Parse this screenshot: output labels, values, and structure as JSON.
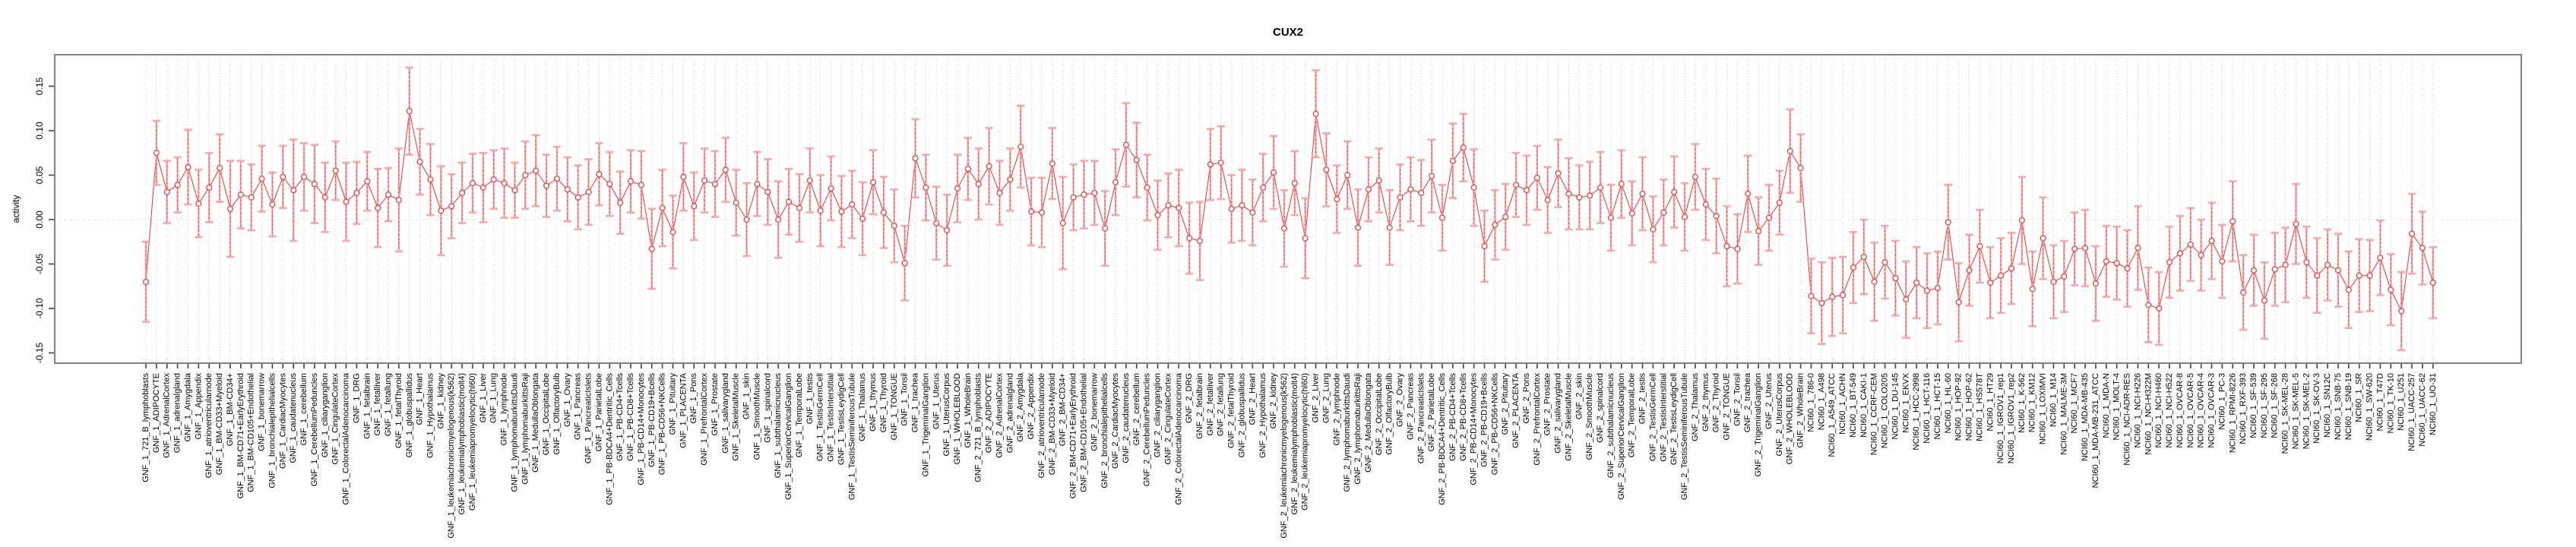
{
  "title": "CUX2",
  "chart_data": {
    "type": "scatter",
    "title": "CUX2",
    "xlabel": "",
    "ylabel": "activity",
    "ylim": [
      -0.16,
      0.19
    ],
    "yticks": [
      -0.15,
      -0.1,
      -0.05,
      0.0,
      0.05,
      0.1,
      0.15
    ],
    "grid": true,
    "legend": "none",
    "marker": "open-circle-with-error-bars",
    "colors": {
      "point": "#ee4040",
      "line": "#ee4040",
      "errorbar": "#f8a6a6",
      "gridline": "#d8d8d8",
      "box": "#808080",
      "text": "#000000",
      "background": "#ffffff"
    },
    "categories": [
      "GNF_1_721_B_lymphoblasts",
      "GNF_1_ADIPOCYTE",
      "GNF_1_AdrenalCortex",
      "GNF_1_adrenalgland",
      "GNF_1_Amygdala",
      "GNF_1_Appendix",
      "GNF_1_atrioventricularnode",
      "GNF_1_BM-CD33+Myeloid",
      "GNF_1_BM-CD34+",
      "GNF_1_BM-CD71+EarlyErythroid",
      "GNF_1_BM-CD105+Endothelial",
      "GNF_1_bonemarrow",
      "GNF_1_bronchialepithelialcells",
      "GNF_1_CardiacMyocytes",
      "GNF_1_caudatenucleus",
      "GNF_1_cerebellum",
      "GNF_1_CerebellumPeduncles",
      "GNF_1_ciliaryganglion",
      "GNF_1_CingulateCortex",
      "GNF_1_ColorectalAdenocarcinoma",
      "GNF_1_DRG",
      "GNF_1_fetalbrain",
      "GNF_1_fetalliver",
      "GNF_1_fetallung",
      "GNF_1_fetalThyroid",
      "GNF_1_globuspallidus",
      "GNF_1_Heart",
      "GNF_1_Hypothalamus",
      "GNF_1_kidney",
      "GNF_1_leukemiachronicmyelogenous(k562)",
      "GNF_1_leukemialymphoblastic(molt4)",
      "GNF_1_leukemiapromyelocytic(hl60)",
      "GNF_1_Liver",
      "GNF_1_Lung",
      "GNF_1_lymphnode",
      "GNF_1_lymphomaburkittsDaudi",
      "GNF_1_lymphomaburkittsRaji",
      "GNF_1_MedullaOblongata",
      "GNF_1_OccipitalLobe",
      "GNF_1_OlfactoryBulb",
      "GNF_1_Ovary",
      "GNF_1_Pancreas",
      "GNF_1_PancreaticIslets",
      "GNF_1_ParietalLobe",
      "GNF_1_PB-BDCA4+Dentritic_Cells",
      "GNF_1_PB-CD4+Tcells",
      "GNF_1_PB-CD8+Tcells",
      "GNF_1_PB-CD14+Monocytes",
      "GNF_1_PB-CD19+Bcells",
      "GNF_1_PB-CD56+NKCells",
      "GNF_1_Pituitary",
      "GNF_1_PLACENTA",
      "GNF_1_Pons",
      "GNF_1_PrefrontalCortex",
      "GNF_1_Prostate",
      "GNF_1_salivarygland",
      "GNF_1_SkeletalMuscle",
      "GNF_1_skin",
      "GNF_1_SmoothMuscle",
      "GNF_1_spinalcord",
      "GNF_1_subthalamicnucleus",
      "GNF_1_SuperiorCervicalGanglion",
      "GNF_1_TemporalLobe",
      "GNF_1_testis",
      "GNF_1_TestisGermCell",
      "GNF_1_TestisInterstitial",
      "GNF_1_TestisLeydigCell",
      "GNF_1_TestisSeminiferousTubule",
      "GNF_1_Thalamus",
      "GNF_1_thymus",
      "GNF_1_Thyroid",
      "GNF_1_TONGUE",
      "GNF_1_Tonsil",
      "GNF_1_trachea",
      "GNF_1_TrigeminalGanglion",
      "GNF_1_Uterus",
      "GNF_1_UterusCorpus",
      "GNF_1_WHOLEBLOOD",
      "GNF_1_WholeBrain",
      "GNF_2_721_B_lymphoblasts",
      "GNF_2_ADIPOCYTE",
      "GNF_2_AdrenalCortex",
      "GNF_2_adrenalgland",
      "GNF_2_Amygdala",
      "GNF_2_Appendix",
      "GNF_2_atrioventricularnode",
      "GNF_2_BM-CD33+Myeloid",
      "GNF_2_BM-CD34+",
      "GNF_2_BM-CD71+EarlyErythroid",
      "GNF_2_BM-CD105+Endothelial",
      "GNF_2_bonemarrow",
      "GNF_2_bronchialepithelialcells",
      "GNF_2_CardiacMyocytes",
      "GNF_2_caudatenucleus",
      "GNF_2_cerebellum",
      "GNF_2_CerebellumPeduncles",
      "GNF_2_ciliaryganglion",
      "GNF_2_CingulateCortex",
      "GNF_2_ColorectalAdenocarcinoma",
      "GNF_2_DRG",
      "GNF_2_fetalbrain",
      "GNF_2_fetalliver",
      "GNF_2_fetallung",
      "GNF_2_fetalThyroid",
      "GNF_2_globuspallidus",
      "GNF_2_Heart",
      "GNF_2_Hypothalamus",
      "GNF_2_kidney",
      "GNF_2_leukemiachronicmyelogenous(k562)",
      "GNF_2_leukemialymphoblastic(molt4)",
      "GNF_2_leukemiapromyelocytic(hl60)",
      "GNF_2_Liver",
      "GNF_2_Lung",
      "GNF_2_lymphnode",
      "GNF_2_lymphomaburkittsDaudi",
      "GNF_2_lymphomaburkittsRaji",
      "GNF_2_MedullaOblongata",
      "GNF_2_OccipitalLobe",
      "GNF_2_OlfactoryBulb",
      "GNF_2_Ovary",
      "GNF_2_Pancreas",
      "GNF_2_PancreaticIslets",
      "GNF_2_ParietalLobe",
      "GNF_2_PB-BDCA4+Dentritic_Cells",
      "GNF_2_PB-CD4+Tcells",
      "GNF_2_PB-CD8+Tcells",
      "GNF_2_PB-CD14+Monocytes",
      "GNF_2_PB-CD19+Bcells",
      "GNF_2_PB-CD56+NKCells",
      "GNF_2_Pituitary",
      "GNF_2_PLACENTA",
      "GNF_2_Pons",
      "GNF_2_PrefrontalCortex",
      "GNF_2_Prostate",
      "GNF_2_salivarygland",
      "GNF_2_SkeletalMuscle",
      "GNF_2_skin",
      "GNF_2_SmoothMuscle",
      "GNF_2_spinalcord",
      "GNF_2_subthalamicnucleus",
      "GNF_2_SuperiorCervicalGanglion",
      "GNF_2_TemporalLobe",
      "GNF_2_testis",
      "GNF_2_TestisGermCell",
      "GNF_2_TestisInterstitial",
      "GNF_2_TestisLeydigCell",
      "GNF_2_TestisSeminiferousTubule",
      "GNF_2_Thalamus",
      "GNF_2_thymus",
      "GNF_2_Thyroid",
      "GNF_2_TONGUE",
      "GNF_2_Tonsil",
      "GNF_2_trachea",
      "GNF_2_TrigeminalGanglion",
      "GNF_2_Uterus",
      "GNF_2_UterusCorpus",
      "GNF_2_WHOLEBLOOD",
      "GNF_2_WholeBrain",
      "NCI60_1_786-0",
      "NCI60_1_A498",
      "NCI60_1_A549_ATCC",
      "NCI60_1_ACHN",
      "NCI60_1_BT-549",
      "NCI60_1_CAKI-1",
      "NCI60_1_CCRF-CEM",
      "NCI60_1_COLO205",
      "NCI60_1_DU-145",
      "NCI60_1_EKVX",
      "NCI60_1_HCC-2998",
      "NCI60_1_HCT-116",
      "NCI60_1_HCT-15",
      "NCI60_1_HL-60",
      "NCI60_1_HOP-92",
      "NCI60_1_HOP-62",
      "NCI60_1_HS578T",
      "NCI60_1_HT29",
      "NCI60_1_IGROV1_rep1",
      "NCI60_1_IGROV1_rep2",
      "NCI60_1_K-562",
      "NCI60_1_KM12",
      "NCI60_1_LOXIMVI",
      "NCI60_1_M14",
      "NCI60_1_MALME-3M",
      "NCI60_1_MCF7",
      "NCI60_1_MDA-MB-435",
      "NCI60_1_MDA-MB-231_ATCC",
      "NCI60_1_MDA-N",
      "NCI60_1_MOLT-4",
      "NCI60_1_NCI-ADR-RES",
      "NCI60_1_NCI-H226",
      "NCI60_1_NCI-H322M",
      "NCI60_1_NCI-H460",
      "NCI60_1_NCI-H522",
      "NCI60_1_OVCAR-8",
      "NCI60_1_OVCAR-5",
      "NCI60_1_OVCAR-4",
      "NCI60_1_OVCAR-3",
      "NCI60_1_PC-3",
      "NCI60_1_RPMI-8226",
      "NCI60_1_RXF-393",
      "NCI60_1_SF-539",
      "NCI60_1_SF-295",
      "NCI60_1_SF-268",
      "NCI60_1_SK-MEL-28",
      "NCI60_1_SK-MEL-5",
      "NCI60_1_SK-MEL-2",
      "NCI60_1_SK-OV-3",
      "NCI60_1_SN12C",
      "NCI60_1_SNB-75",
      "NCI60_1_SNB-19",
      "NCI60_1_SR",
      "NCI60_1_SW-620",
      "NCI60_1_T47D",
      "NCI60_1_TK-10",
      "NCI60_1_U251",
      "NCI60_1_UACC-257",
      "NCI60_1_UACC-62",
      "NCI60_1_UO-31"
    ],
    "series": [
      {
        "name": "activity",
        "values": [
          -0.07,
          0.075,
          0.031,
          0.039,
          0.059,
          0.018,
          0.036,
          0.058,
          0.012,
          0.028,
          0.025,
          0.046,
          0.017,
          0.048,
          0.033,
          0.048,
          0.04,
          0.025,
          0.055,
          0.02,
          0.03,
          0.043,
          0.013,
          0.028,
          0.022,
          0.122,
          0.065,
          0.045,
          0.01,
          0.015,
          0.03,
          0.041,
          0.036,
          0.045,
          0.041,
          0.033,
          0.05,
          0.055,
          0.038,
          0.046,
          0.034,
          0.025,
          0.031,
          0.051,
          0.04,
          0.019,
          0.043,
          0.039,
          -0.033,
          0.013,
          -0.014,
          0.048,
          0.015,
          0.044,
          0.04,
          0.056,
          0.019,
          0.0,
          0.04,
          0.031,
          0.0,
          0.02,
          0.013,
          0.044,
          0.01,
          0.035,
          0.009,
          0.017,
          0.001,
          0.042,
          0.008,
          -0.007,
          -0.049,
          0.069,
          0.036,
          -0.004,
          -0.012,
          0.035,
          0.057,
          0.04,
          0.06,
          0.03,
          0.045,
          0.082,
          0.009,
          0.008,
          0.063,
          -0.004,
          0.025,
          0.028,
          0.03,
          -0.01,
          0.042,
          0.084,
          0.067,
          0.036,
          0.005,
          0.016,
          0.013,
          -0.021,
          -0.024,
          0.062,
          0.064,
          0.012,
          0.016,
          0.008,
          0.036,
          0.053,
          -0.01,
          0.041,
          -0.021,
          0.119,
          0.056,
          0.023,
          0.05,
          -0.009,
          0.034,
          0.044,
          -0.009,
          0.025,
          0.034,
          0.03,
          0.049,
          0.002,
          0.066,
          0.081,
          0.036,
          -0.03,
          -0.006,
          0.003,
          0.039,
          0.033,
          0.047,
          0.022,
          0.052,
          0.029,
          0.025,
          0.027,
          0.036,
          0.002,
          0.04,
          0.007,
          0.029,
          -0.011,
          0.008,
          0.031,
          0.003,
          0.048,
          0.017,
          0.004,
          -0.03,
          -0.033,
          0.029,
          -0.013,
          0.002,
          0.019,
          0.077,
          0.058,
          -0.086,
          -0.094,
          -0.087,
          -0.085,
          -0.054,
          -0.042,
          -0.07,
          -0.048,
          -0.066,
          -0.09,
          -0.071,
          -0.08,
          -0.077,
          -0.003,
          -0.093,
          -0.057,
          -0.03,
          -0.071,
          -0.063,
          -0.055,
          -0.001,
          -0.078,
          -0.021,
          -0.07,
          -0.064,
          -0.033,
          -0.032,
          -0.072,
          -0.047,
          -0.049,
          -0.055,
          -0.032,
          -0.096,
          -0.1,
          -0.048,
          -0.038,
          -0.028,
          -0.04,
          -0.024,
          -0.047,
          -0.002,
          -0.082,
          -0.057,
          -0.091,
          -0.056,
          -0.051,
          -0.005,
          -0.048,
          -0.063,
          -0.051,
          -0.057,
          -0.079,
          -0.063,
          -0.063,
          -0.043,
          -0.079,
          -0.103,
          -0.016,
          -0.032,
          -0.071
        ],
        "ci_halfwidth": [
          0.045,
          0.036,
          0.035,
          0.031,
          0.042,
          0.038,
          0.039,
          0.038,
          0.054,
          0.038,
          0.037,
          0.037,
          0.036,
          0.035,
          0.057,
          0.038,
          0.044,
          0.039,
          0.033,
          0.044,
          0.035,
          0.033,
          0.044,
          0.03,
          0.058,
          0.049,
          0.037,
          0.04,
          0.05,
          0.036,
          0.034,
          0.033,
          0.039,
          0.033,
          0.039,
          0.031,
          0.038,
          0.04,
          0.035,
          0.036,
          0.036,
          0.036,
          0.037,
          0.035,
          0.036,
          0.035,
          0.035,
          0.038,
          0.045,
          0.043,
          0.041,
          0.038,
          0.038,
          0.036,
          0.037,
          0.036,
          0.037,
          0.041,
          0.036,
          0.037,
          0.043,
          0.037,
          0.038,
          0.036,
          0.04,
          0.036,
          0.04,
          0.038,
          0.041,
          0.036,
          0.04,
          0.041,
          0.042,
          0.044,
          0.037,
          0.041,
          0.04,
          0.038,
          0.035,
          0.04,
          0.043,
          0.036,
          0.035,
          0.046,
          0.038,
          0.039,
          0.04,
          0.052,
          0.037,
          0.038,
          0.036,
          0.042,
          0.037,
          0.047,
          0.042,
          0.037,
          0.039,
          0.036,
          0.043,
          0.04,
          0.044,
          0.04,
          0.041,
          0.038,
          0.04,
          0.037,
          0.038,
          0.041,
          0.043,
          0.036,
          0.045,
          0.049,
          0.041,
          0.038,
          0.038,
          0.043,
          0.036,
          0.036,
          0.042,
          0.037,
          0.036,
          0.037,
          0.041,
          0.037,
          0.042,
          0.038,
          0.043,
          0.04,
          0.039,
          0.037,
          0.036,
          0.039,
          0.036,
          0.037,
          0.038,
          0.04,
          0.036,
          0.038,
          0.04,
          0.037,
          0.038,
          0.036,
          0.041,
          0.037,
          0.037,
          0.04,
          0.038,
          0.037,
          0.04,
          0.042,
          0.045,
          0.039,
          0.043,
          0.038,
          0.037,
          0.036,
          0.047,
          0.038,
          0.042,
          0.046,
          0.044,
          0.043,
          0.04,
          0.042,
          0.044,
          0.041,
          0.042,
          0.043,
          0.04,
          0.042,
          0.041,
          0.042,
          0.044,
          0.04,
          0.041,
          0.04,
          0.042,
          0.04,
          0.049,
          0.042,
          0.046,
          0.041,
          0.04,
          0.041,
          0.043,
          0.042,
          0.04,
          0.041,
          0.043,
          0.047,
          0.042,
          0.041,
          0.04,
          0.042,
          0.041,
          0.04,
          0.043,
          0.041,
          0.045,
          0.042,
          0.04,
          0.043,
          0.041,
          0.042,
          0.045,
          0.04,
          0.042,
          0.04,
          0.041,
          0.043,
          0.041,
          0.04,
          0.042,
          0.04,
          0.044,
          0.045,
          0.041,
          0.04
        ]
      }
    ]
  }
}
